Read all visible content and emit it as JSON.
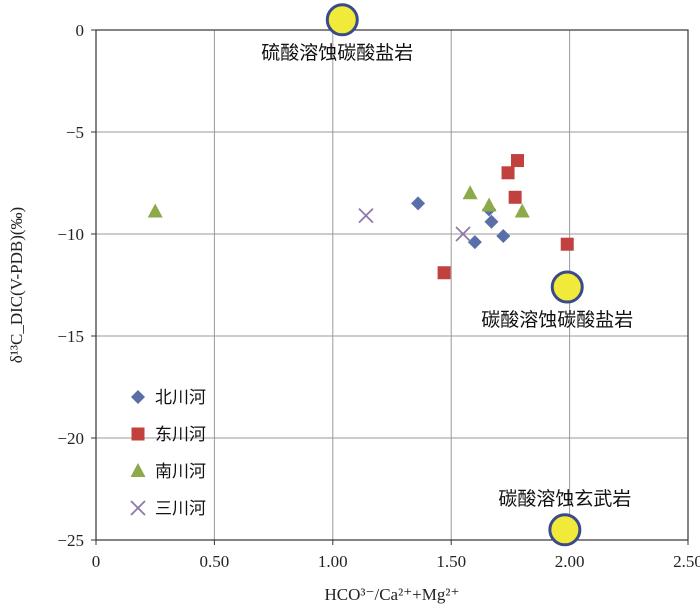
{
  "chart_data": {
    "type": "scatter",
    "xlabel": "HCO³⁻/Ca²⁺+Mg²⁺",
    "ylabel": "δ¹³C_DIC(V-PDB)(‰)",
    "xlim": [
      0,
      2.5
    ],
    "ylim": [
      -25,
      0
    ],
    "xticks": [
      0,
      0.5,
      1.0,
      1.5,
      2.0,
      2.5
    ],
    "xtick_labels": [
      "0",
      "0.50",
      "1.00",
      "1.50",
      "2.00",
      "2.50"
    ],
    "yticks": [
      0,
      -5,
      -10,
      -15,
      -20,
      -25
    ],
    "ytick_labels": [
      "0",
      "−5",
      "−10",
      "−15",
      "−20",
      "−25"
    ],
    "grid": true,
    "legend_position": "left",
    "series": [
      {
        "name": "北川河",
        "marker": "diamond",
        "color": "#5A6FA8",
        "points": [
          [
            1.36,
            -8.5
          ],
          [
            1.6,
            -10.4
          ],
          [
            1.67,
            -9.4
          ],
          [
            1.72,
            -10.1
          ],
          [
            1.66,
            -8.8
          ]
        ]
      },
      {
        "name": "东川河",
        "marker": "square",
        "color": "#C0413E",
        "points": [
          [
            1.47,
            -11.9
          ],
          [
            1.74,
            -7.0
          ],
          [
            1.78,
            -6.4
          ],
          [
            1.77,
            -8.2
          ],
          [
            1.99,
            -10.5
          ]
        ]
      },
      {
        "name": "南川河",
        "marker": "triangle",
        "color": "#8DAA4A",
        "points": [
          [
            0.25,
            -8.9
          ],
          [
            1.58,
            -8.0
          ],
          [
            1.66,
            -8.6
          ],
          [
            1.8,
            -8.9
          ]
        ]
      },
      {
        "name": "三川河",
        "marker": "x",
        "color": "#8E7AAA",
        "points": [
          [
            1.14,
            -9.1
          ],
          [
            1.55,
            -10.0
          ]
        ]
      }
    ],
    "end_members": [
      {
        "label": "硫酸溶蚀碳酸盐岩",
        "x": 1.04,
        "y": 0.5,
        "label_anchor": "below"
      },
      {
        "label": "碳酸溶蚀碳酸盐岩",
        "x": 1.99,
        "y": -12.6,
        "label_anchor": "below"
      },
      {
        "label": "碳酸溶蚀玄武岩",
        "x": 1.98,
        "y": -24.5,
        "label_anchor": "above"
      }
    ],
    "end_member_fill": "#F2EA3A",
    "end_member_stroke": "#3B4A8A"
  }
}
